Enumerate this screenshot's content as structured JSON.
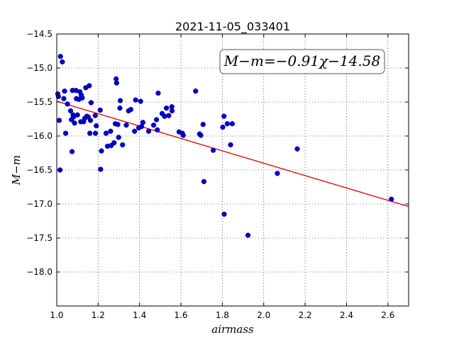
{
  "chart_data": {
    "type": "scatter",
    "title": "2021-11-05_033401",
    "xlabel": "airmass",
    "ylabel": "M−m",
    "xlim": [
      1.0,
      2.7
    ],
    "ylim": [
      -14.5,
      -18.5
    ],
    "y_inverted": true,
    "x_ticks": [
      "1.0",
      "1.2",
      "1.4",
      "1.6",
      "1.8",
      "2.0",
      "2.2",
      "2.4",
      "2.6"
    ],
    "y_ticks": [
      "−14.5",
      "−15.0",
      "−15.5",
      "−16.0",
      "−16.5",
      "−17.0",
      "−17.5",
      "−18.0"
    ],
    "grid": true,
    "annotation": "M−m=−0.91χ−14.58",
    "fit": {
      "slope": -0.91,
      "intercept": -14.58,
      "color": "#e00000"
    },
    "points_color": "#0000cc",
    "points": [
      [
        1.005,
        -15.38
      ],
      [
        1.008,
        -15.42
      ],
      [
        1.012,
        -15.77
      ],
      [
        1.016,
        -16.5
      ],
      [
        1.018,
        -14.83
      ],
      [
        1.027,
        -14.91
      ],
      [
        1.034,
        -15.45
      ],
      [
        1.038,
        -15.34
      ],
      [
        1.043,
        -15.96
      ],
      [
        1.052,
        -15.53
      ],
      [
        1.067,
        -15.63
      ],
      [
        1.071,
        -15.76
      ],
      [
        1.074,
        -16.23
      ],
      [
        1.076,
        -15.33
      ],
      [
        1.079,
        -15.69
      ],
      [
        1.081,
        -15.72
      ],
      [
        1.086,
        -15.81
      ],
      [
        1.093,
        -15.33
      ],
      [
        1.095,
        -15.45
      ],
      [
        1.1,
        -15.69
      ],
      [
        1.107,
        -15.46
      ],
      [
        1.112,
        -15.35
      ],
      [
        1.116,
        -15.79
      ],
      [
        1.119,
        -15.4
      ],
      [
        1.123,
        -15.44
      ],
      [
        1.13,
        -15.79
      ],
      [
        1.135,
        -15.74
      ],
      [
        1.14,
        -15.29
      ],
      [
        1.145,
        -15.71
      ],
      [
        1.152,
        -15.72
      ],
      [
        1.157,
        -15.26
      ],
      [
        1.16,
        -15.96
      ],
      [
        1.163,
        -15.77
      ],
      [
        1.166,
        -15.51
      ],
      [
        1.186,
        -15.7
      ],
      [
        1.187,
        -15.96
      ],
      [
        1.191,
        -15.85
      ],
      [
        1.21,
        -15.62
      ],
      [
        1.212,
        -16.49
      ],
      [
        1.216,
        -16.22
      ],
      [
        1.238,
        -15.96
      ],
      [
        1.245,
        -16.15
      ],
      [
        1.26,
        -15.93
      ],
      [
        1.263,
        -16.14
      ],
      [
        1.277,
        -16.1
      ],
      [
        1.283,
        -15.82
      ],
      [
        1.287,
        -15.16
      ],
      [
        1.289,
        -15.22
      ],
      [
        1.295,
        -15.83
      ],
      [
        1.299,
        -16.02
      ],
      [
        1.305,
        -15.59
      ],
      [
        1.307,
        -15.48
      ],
      [
        1.318,
        -16.13
      ],
      [
        1.336,
        -15.84
      ],
      [
        1.347,
        -15.63
      ],
      [
        1.358,
        -15.61
      ],
      [
        1.376,
        -15.93
      ],
      [
        1.381,
        -15.47
      ],
      [
        1.396,
        -15.88
      ],
      [
        1.405,
        -15.49
      ],
      [
        1.41,
        -15.86
      ],
      [
        1.416,
        -15.8
      ],
      [
        1.444,
        -15.93
      ],
      [
        1.468,
        -15.84
      ],
      [
        1.482,
        -15.76
      ],
      [
        1.486,
        -15.91
      ],
      [
        1.49,
        -15.37
      ],
      [
        1.509,
        -15.67
      ],
      [
        1.521,
        -15.71
      ],
      [
        1.53,
        -15.59
      ],
      [
        1.541,
        -15.7
      ],
      [
        1.556,
        -15.57
      ],
      [
        1.557,
        -15.63
      ],
      [
        1.591,
        -15.94
      ],
      [
        1.607,
        -15.96
      ],
      [
        1.611,
        -15.99
      ],
      [
        1.671,
        -15.34
      ],
      [
        1.69,
        -15.97
      ],
      [
        1.696,
        -15.99
      ],
      [
        1.707,
        -15.83
      ],
      [
        1.711,
        -16.67
      ],
      [
        1.756,
        -16.21
      ],
      [
        1.802,
        -15.87
      ],
      [
        1.808,
        -15.71
      ],
      [
        1.809,
        -17.15
      ],
      [
        1.824,
        -15.82
      ],
      [
        1.84,
        -16.13
      ],
      [
        1.848,
        -15.82
      ],
      [
        1.924,
        -17.46
      ],
      [
        2.066,
        -16.55
      ],
      [
        2.162,
        -16.19
      ],
      [
        2.617,
        -16.93
      ]
    ]
  }
}
